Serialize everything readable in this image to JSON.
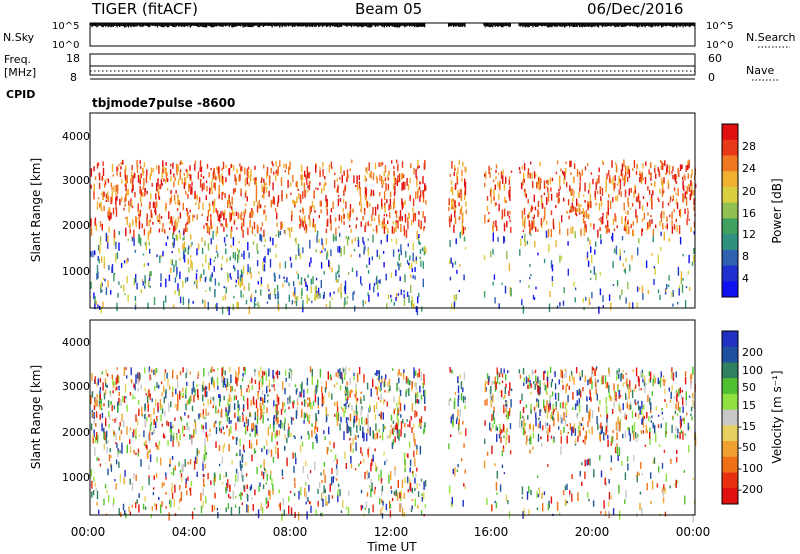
{
  "header": {
    "title": "TIGER (fitACF)",
    "beam": "Beam 05",
    "date": "06/Dec/2016"
  },
  "top_panels": {
    "nsky_label": "N.Sky",
    "nsky_ticks": [
      "10^5",
      "10^0"
    ],
    "nsearch_label": "N.Search",
    "nsearch_ticks": [
      "10^5",
      "10^0"
    ],
    "freq_label_1": "Freq.",
    "freq_label_2": "[MHz]",
    "freq_ticks": [
      "18",
      "8"
    ],
    "nave_label": "Nave",
    "nave_ticks": [
      "60",
      "0"
    ],
    "cpid_label": "CPID",
    "cpid_text": "tbjmode7pulse -8600"
  },
  "power_colorbar": {
    "label": "Power [dB]",
    "ticks": [
      "28",
      "24",
      "20",
      "16",
      "12",
      "8",
      "4"
    ],
    "colors": [
      "#e01010",
      "#e83818",
      "#f07820",
      "#f0b030",
      "#d8d040",
      "#90c050",
      "#40a060",
      "#309080",
      "#3060b0",
      "#2030d0",
      "#1010f0"
    ]
  },
  "velocity_colorbar": {
    "label": "Velocity [m s⁻¹]",
    "ticks": [
      "200",
      "100",
      "50",
      "15",
      "-15",
      "-50",
      "-100",
      "-200"
    ],
    "colors": [
      "#2030c0",
      "#2050a0",
      "#308060",
      "#50c030",
      "#90e040",
      "#c8c8c8",
      "#e8d060",
      "#f0a030",
      "#f07018",
      "#e83010",
      "#e01010"
    ]
  },
  "chart_data": [
    {
      "type": "heatmap",
      "name": "power",
      "ylabel": "Slant Range [km]",
      "yticks": [
        "4000",
        "3000",
        "2000",
        "1000"
      ],
      "ylim": [
        180,
        4600
      ],
      "xlim": [
        0,
        24
      ],
      "data_gaps_ut": [
        [
          13.3,
          14.2
        ],
        [
          14.9,
          15.6
        ],
        [
          16.7,
          17.0
        ]
      ],
      "scatter_bands_km": [
        [
          1950,
          3550
        ],
        [
          0,
          1950
        ]
      ]
    },
    {
      "type": "heatmap",
      "name": "velocity",
      "ylabel": "Slant Range [km]",
      "yticks": [
        "4000",
        "3000",
        "2000",
        "1000"
      ],
      "ylim": [
        180,
        4600
      ],
      "xlim": [
        0,
        24
      ],
      "data_gaps_ut": [
        [
          13.3,
          14.2
        ],
        [
          14.9,
          15.6
        ],
        [
          16.7,
          17.0
        ]
      ]
    }
  ],
  "x_axis": {
    "ticks": [
      "00:00",
      "04:00",
      "08:00",
      "12:00",
      "16:00",
      "20:00",
      "00:00"
    ],
    "label": "Time UT"
  }
}
